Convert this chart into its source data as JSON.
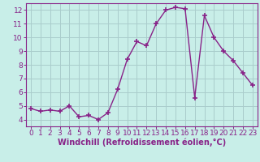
{
  "x": [
    0,
    1,
    2,
    3,
    4,
    5,
    6,
    7,
    8,
    9,
    10,
    11,
    12,
    13,
    14,
    15,
    16,
    17,
    18,
    19,
    20,
    21,
    22,
    23
  ],
  "y": [
    4.8,
    4.6,
    4.7,
    4.6,
    5.0,
    4.2,
    4.3,
    4.0,
    4.5,
    6.2,
    8.4,
    9.7,
    9.4,
    11.0,
    12.0,
    12.2,
    12.1,
    5.6,
    11.6,
    10.0,
    9.0,
    8.3,
    7.4,
    6.5
  ],
  "line_color": "#882288",
  "marker": "+",
  "marker_size": 4,
  "marker_lw": 1.2,
  "bg_color": "#c8eee8",
  "grid_color": "#aacccc",
  "xlabel": "Windchill (Refroidissement éolien,°C)",
  "ylabel": "",
  "xlim": [
    -0.5,
    23.5
  ],
  "ylim": [
    3.5,
    12.5
  ],
  "yticks": [
    4,
    5,
    6,
    7,
    8,
    9,
    10,
    11,
    12
  ],
  "xticks": [
    0,
    1,
    2,
    3,
    4,
    5,
    6,
    7,
    8,
    9,
    10,
    11,
    12,
    13,
    14,
    15,
    16,
    17,
    18,
    19,
    20,
    21,
    22,
    23
  ],
  "tick_color": "#882288",
  "label_color": "#882288",
  "spine_color": "#882288",
  "font_size": 6.5,
  "xlabel_fontsize": 7.0,
  "line_width": 1.0
}
